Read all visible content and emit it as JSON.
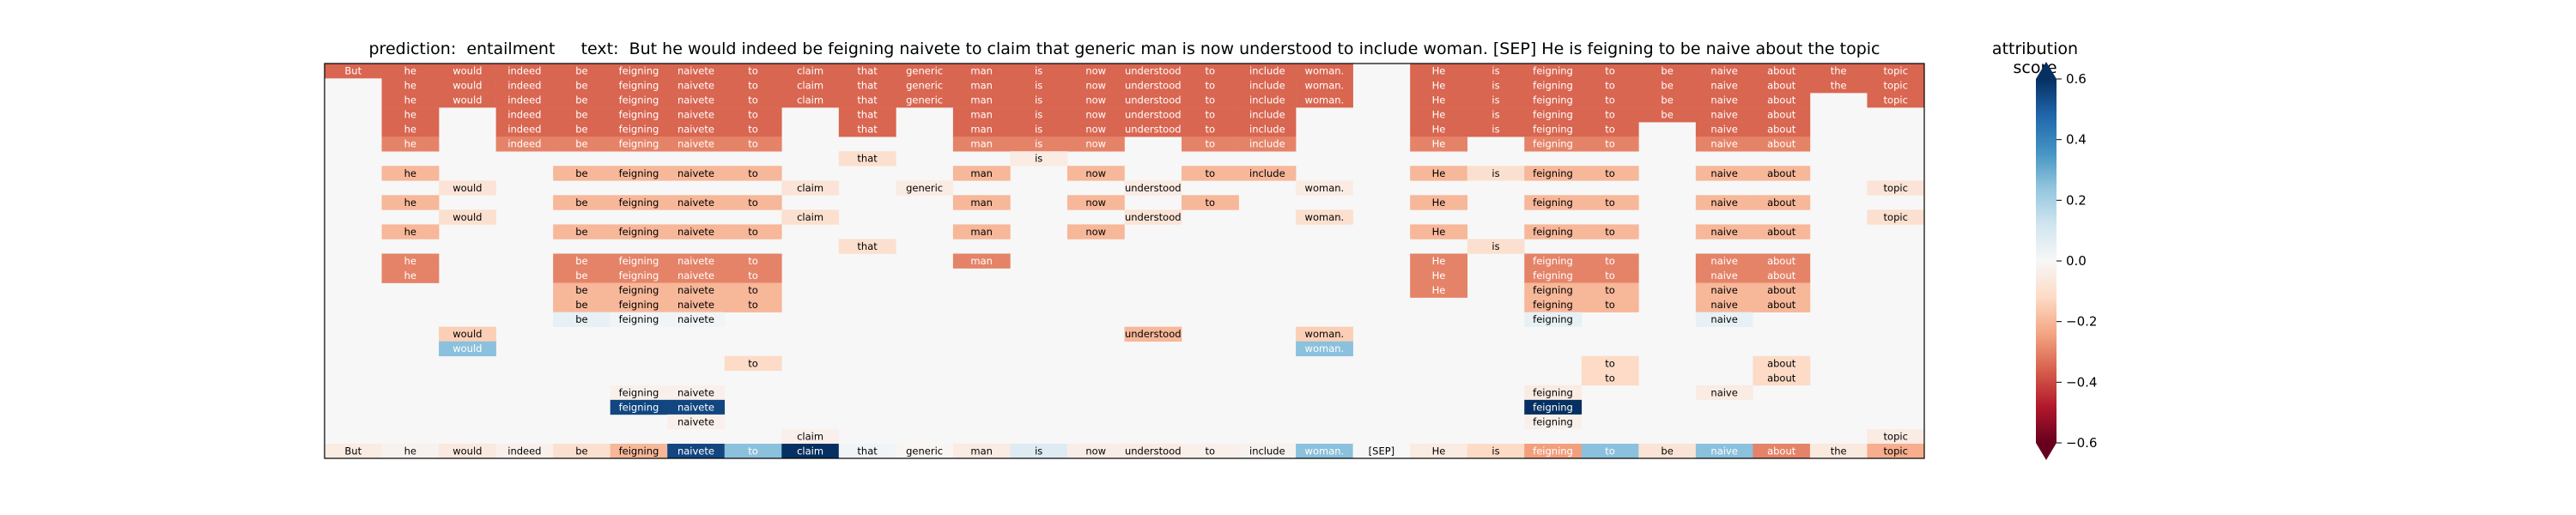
{
  "chart_data": {
    "type": "heatmap",
    "title_prediction_label": "prediction:",
    "title_prediction_value": "entailment",
    "title_text_label": "text:",
    "title_text_value": "But he would indeed be feigning naivete to claim that generic man is now understood to include woman. [SEP] He is feigning to be naive about the topic",
    "colorbar_title": "attribution score",
    "colorbar_range": [
      -0.6,
      0.6
    ],
    "colorbar_colormap": "RdBu",
    "colorbar_ticks": [
      "0.6",
      "0.4",
      "0.2",
      "0.0",
      "−0.2",
      "−0.4",
      "−0.6"
    ],
    "colorbar_tick_values": [
      0.6,
      0.4,
      0.2,
      0.0,
      -0.2,
      -0.4,
      -0.6
    ],
    "tokens": [
      "But",
      "he",
      "would",
      "indeed",
      "be",
      "feigning",
      "naivete",
      "to",
      "claim",
      "that",
      "generic",
      "man",
      "is",
      "now",
      "understood",
      "to",
      "include",
      "woman.",
      "[SEP]",
      "He",
      "is",
      "feigning",
      "to",
      "be",
      "naive",
      "about",
      "the",
      "topic"
    ],
    "final_row_scores": [
      -0.05,
      -0.02,
      -0.06,
      -0.03,
      -0.1,
      -0.2,
      0.55,
      0.25,
      0.6,
      0.02,
      -0.01,
      -0.05,
      0.08,
      -0.04,
      -0.05,
      -0.03,
      -0.02,
      0.25,
      0.0,
      -0.05,
      -0.12,
      -0.25,
      0.25,
      -0.08,
      0.25,
      -0.3,
      -0.06,
      -0.22
    ],
    "layer_rows": [
      {
        "cells": [
          [
            0,
            -0.35
          ],
          [
            1,
            -0.35
          ],
          [
            2,
            -0.35
          ],
          [
            3,
            -0.35
          ],
          [
            4,
            -0.35
          ],
          [
            5,
            -0.35
          ],
          [
            6,
            -0.35
          ],
          [
            7,
            -0.35
          ],
          [
            8,
            -0.35
          ],
          [
            9,
            -0.35
          ],
          [
            10,
            -0.35
          ],
          [
            11,
            -0.35
          ],
          [
            12,
            -0.35
          ],
          [
            13,
            -0.35
          ],
          [
            14,
            -0.35
          ],
          [
            15,
            -0.35
          ],
          [
            16,
            -0.35
          ],
          [
            17,
            -0.35
          ],
          [
            19,
            -0.35
          ],
          [
            20,
            -0.35
          ],
          [
            21,
            -0.35
          ],
          [
            22,
            -0.35
          ],
          [
            23,
            -0.35
          ],
          [
            24,
            -0.35
          ],
          [
            25,
            -0.35
          ],
          [
            26,
            -0.35
          ],
          [
            27,
            -0.35
          ]
        ]
      },
      {
        "cells": [
          [
            1,
            -0.35
          ],
          [
            2,
            -0.35
          ],
          [
            3,
            -0.35
          ],
          [
            4,
            -0.35
          ],
          [
            5,
            -0.35
          ],
          [
            6,
            -0.35
          ],
          [
            7,
            -0.35
          ],
          [
            8,
            -0.35
          ],
          [
            9,
            -0.35
          ],
          [
            10,
            -0.35
          ],
          [
            11,
            -0.35
          ],
          [
            12,
            -0.35
          ],
          [
            13,
            -0.35
          ],
          [
            14,
            -0.35
          ],
          [
            15,
            -0.35
          ],
          [
            16,
            -0.35
          ],
          [
            17,
            -0.35
          ],
          [
            19,
            -0.35
          ],
          [
            20,
            -0.35
          ],
          [
            21,
            -0.35
          ],
          [
            22,
            -0.35
          ],
          [
            23,
            -0.35
          ],
          [
            24,
            -0.35
          ],
          [
            25,
            -0.35
          ],
          [
            26,
            -0.35
          ],
          [
            27,
            -0.35
          ]
        ]
      },
      {
        "cells": [
          [
            1,
            -0.35
          ],
          [
            2,
            -0.35
          ],
          [
            3,
            -0.35
          ],
          [
            4,
            -0.35
          ],
          [
            5,
            -0.35
          ],
          [
            6,
            -0.35
          ],
          [
            7,
            -0.35
          ],
          [
            8,
            -0.35
          ],
          [
            9,
            -0.35
          ],
          [
            10,
            -0.35
          ],
          [
            11,
            -0.35
          ],
          [
            12,
            -0.35
          ],
          [
            13,
            -0.35
          ],
          [
            14,
            -0.35
          ],
          [
            15,
            -0.35
          ],
          [
            16,
            -0.35
          ],
          [
            17,
            -0.35
          ],
          [
            19,
            -0.35
          ],
          [
            20,
            -0.35
          ],
          [
            21,
            -0.35
          ],
          [
            22,
            -0.35
          ],
          [
            23,
            -0.35
          ],
          [
            24,
            -0.35
          ],
          [
            25,
            -0.35
          ],
          [
            27,
            -0.35
          ]
        ]
      },
      {
        "cells": [
          [
            1,
            -0.35
          ],
          [
            3,
            -0.35
          ],
          [
            4,
            -0.35
          ],
          [
            5,
            -0.35
          ],
          [
            6,
            -0.35
          ],
          [
            7,
            -0.35
          ],
          [
            9,
            -0.35
          ],
          [
            11,
            -0.35
          ],
          [
            12,
            -0.35
          ],
          [
            13,
            -0.35
          ],
          [
            14,
            -0.35
          ],
          [
            15,
            -0.35
          ],
          [
            16,
            -0.35
          ],
          [
            19,
            -0.35
          ],
          [
            20,
            -0.35
          ],
          [
            21,
            -0.35
          ],
          [
            22,
            -0.35
          ],
          [
            23,
            -0.35
          ],
          [
            24,
            -0.35
          ],
          [
            25,
            -0.35
          ]
        ]
      },
      {
        "cells": [
          [
            1,
            -0.35
          ],
          [
            3,
            -0.35
          ],
          [
            4,
            -0.35
          ],
          [
            5,
            -0.35
          ],
          [
            6,
            -0.35
          ],
          [
            7,
            -0.35
          ],
          [
            9,
            -0.35
          ],
          [
            11,
            -0.35
          ],
          [
            12,
            -0.35
          ],
          [
            13,
            -0.35
          ],
          [
            14,
            -0.35
          ],
          [
            15,
            -0.35
          ],
          [
            16,
            -0.35
          ],
          [
            19,
            -0.35
          ],
          [
            20,
            -0.35
          ],
          [
            21,
            -0.35
          ],
          [
            22,
            -0.35
          ],
          [
            24,
            -0.35
          ],
          [
            25,
            -0.35
          ]
        ]
      },
      {
        "cells": [
          [
            1,
            -0.3
          ],
          [
            3,
            -0.3
          ],
          [
            4,
            -0.3
          ],
          [
            5,
            -0.3
          ],
          [
            6,
            -0.3
          ],
          [
            7,
            -0.3
          ],
          [
            11,
            -0.3
          ],
          [
            12,
            -0.3
          ],
          [
            13,
            -0.3
          ],
          [
            15,
            -0.3
          ],
          [
            16,
            -0.3
          ],
          [
            19,
            -0.3
          ],
          [
            21,
            -0.3
          ],
          [
            22,
            -0.3
          ],
          [
            24,
            -0.3
          ],
          [
            25,
            -0.3
          ]
        ]
      },
      {
        "cells": [
          [
            9,
            -0.1
          ],
          [
            12,
            -0.05
          ]
        ]
      },
      {
        "cells": [
          [
            1,
            -0.2
          ],
          [
            4,
            -0.2
          ],
          [
            5,
            -0.2
          ],
          [
            6,
            -0.2
          ],
          [
            7,
            -0.2
          ],
          [
            11,
            -0.2
          ],
          [
            13,
            -0.2
          ],
          [
            15,
            -0.2
          ],
          [
            16,
            -0.2
          ],
          [
            19,
            -0.2
          ],
          [
            20,
            -0.1
          ],
          [
            21,
            -0.2
          ],
          [
            22,
            -0.2
          ],
          [
            24,
            -0.2
          ],
          [
            25,
            -0.2
          ]
        ]
      },
      {
        "cells": [
          [
            2,
            -0.08
          ],
          [
            8,
            -0.08
          ],
          [
            10,
            -0.05
          ],
          [
            14,
            -0.05
          ],
          [
            17,
            -0.05
          ],
          [
            27,
            -0.08
          ]
        ]
      },
      {
        "cells": [
          [
            1,
            -0.2
          ],
          [
            4,
            -0.2
          ],
          [
            5,
            -0.2
          ],
          [
            6,
            -0.2
          ],
          [
            7,
            -0.2
          ],
          [
            11,
            -0.2
          ],
          [
            13,
            -0.2
          ],
          [
            15,
            -0.2
          ],
          [
            19,
            -0.2
          ],
          [
            21,
            -0.2
          ],
          [
            22,
            -0.2
          ],
          [
            24,
            -0.2
          ],
          [
            25,
            -0.2
          ]
        ]
      },
      {
        "cells": [
          [
            2,
            -0.1
          ],
          [
            8,
            -0.1
          ],
          [
            14,
            -0.08
          ],
          [
            17,
            -0.1
          ],
          [
            27,
            -0.1
          ]
        ]
      },
      {
        "cells": [
          [
            1,
            -0.2
          ],
          [
            4,
            -0.2
          ],
          [
            5,
            -0.2
          ],
          [
            6,
            -0.2
          ],
          [
            7,
            -0.2
          ],
          [
            11,
            -0.2
          ],
          [
            13,
            -0.2
          ],
          [
            19,
            -0.2
          ],
          [
            21,
            -0.2
          ],
          [
            22,
            -0.2
          ],
          [
            24,
            -0.2
          ],
          [
            25,
            -0.2
          ]
        ]
      },
      {
        "cells": [
          [
            9,
            -0.1
          ],
          [
            20,
            -0.1
          ]
        ]
      },
      {
        "cells": [
          [
            1,
            -0.3
          ],
          [
            4,
            -0.3
          ],
          [
            5,
            -0.3
          ],
          [
            6,
            -0.3
          ],
          [
            7,
            -0.3
          ],
          [
            11,
            -0.3
          ],
          [
            19,
            -0.3
          ],
          [
            21,
            -0.3
          ],
          [
            22,
            -0.3
          ],
          [
            24,
            -0.3
          ],
          [
            25,
            -0.3
          ]
        ]
      },
      {
        "cells": [
          [
            1,
            -0.3
          ],
          [
            4,
            -0.3
          ],
          [
            5,
            -0.3
          ],
          [
            6,
            -0.3
          ],
          [
            7,
            -0.3
          ],
          [
            19,
            -0.3
          ],
          [
            21,
            -0.3
          ],
          [
            22,
            -0.3
          ],
          [
            24,
            -0.3
          ],
          [
            25,
            -0.3
          ]
        ]
      },
      {
        "cells": [
          [
            4,
            -0.2
          ],
          [
            5,
            -0.2
          ],
          [
            6,
            -0.2
          ],
          [
            7,
            -0.2
          ],
          [
            19,
            -0.3
          ],
          [
            21,
            -0.2
          ],
          [
            22,
            -0.2
          ],
          [
            24,
            -0.2
          ],
          [
            25,
            -0.2
          ]
        ]
      },
      {
        "cells": [
          [
            4,
            -0.2
          ],
          [
            5,
            -0.2
          ],
          [
            6,
            -0.2
          ],
          [
            7,
            -0.2
          ],
          [
            21,
            -0.2
          ],
          [
            22,
            -0.2
          ],
          [
            24,
            -0.2
          ],
          [
            25,
            -0.2
          ]
        ]
      },
      {
        "cells": [
          [
            4,
            0.05
          ],
          [
            5,
            0.02
          ],
          [
            6,
            0.02
          ],
          [
            21,
            0.05
          ],
          [
            24,
            0.05
          ]
        ]
      },
      {
        "cells": [
          [
            2,
            -0.15
          ],
          [
            14,
            -0.2
          ],
          [
            17,
            -0.15
          ]
        ]
      },
      {
        "cells": [
          [
            2,
            0.25
          ],
          [
            17,
            0.25
          ]
        ]
      },
      {
        "cells": [
          [
            7,
            -0.12
          ],
          [
            22,
            -0.12
          ],
          [
            25,
            -0.12
          ]
        ]
      },
      {
        "cells": [
          [
            22,
            -0.12
          ],
          [
            25,
            -0.12
          ]
        ]
      },
      {
        "cells": [
          [
            5,
            -0.03
          ],
          [
            6,
            -0.03
          ],
          [
            21,
            -0.05
          ],
          [
            24,
            -0.05
          ]
        ]
      },
      {
        "cells": [
          [
            5,
            0.55
          ],
          [
            6,
            0.55
          ],
          [
            21,
            0.6
          ]
        ]
      },
      {
        "cells": [
          [
            6,
            -0.03
          ],
          [
            21,
            -0.03
          ]
        ]
      },
      {
        "cells": [
          [
            8,
            -0.03
          ],
          [
            27,
            -0.05
          ]
        ]
      }
    ]
  }
}
